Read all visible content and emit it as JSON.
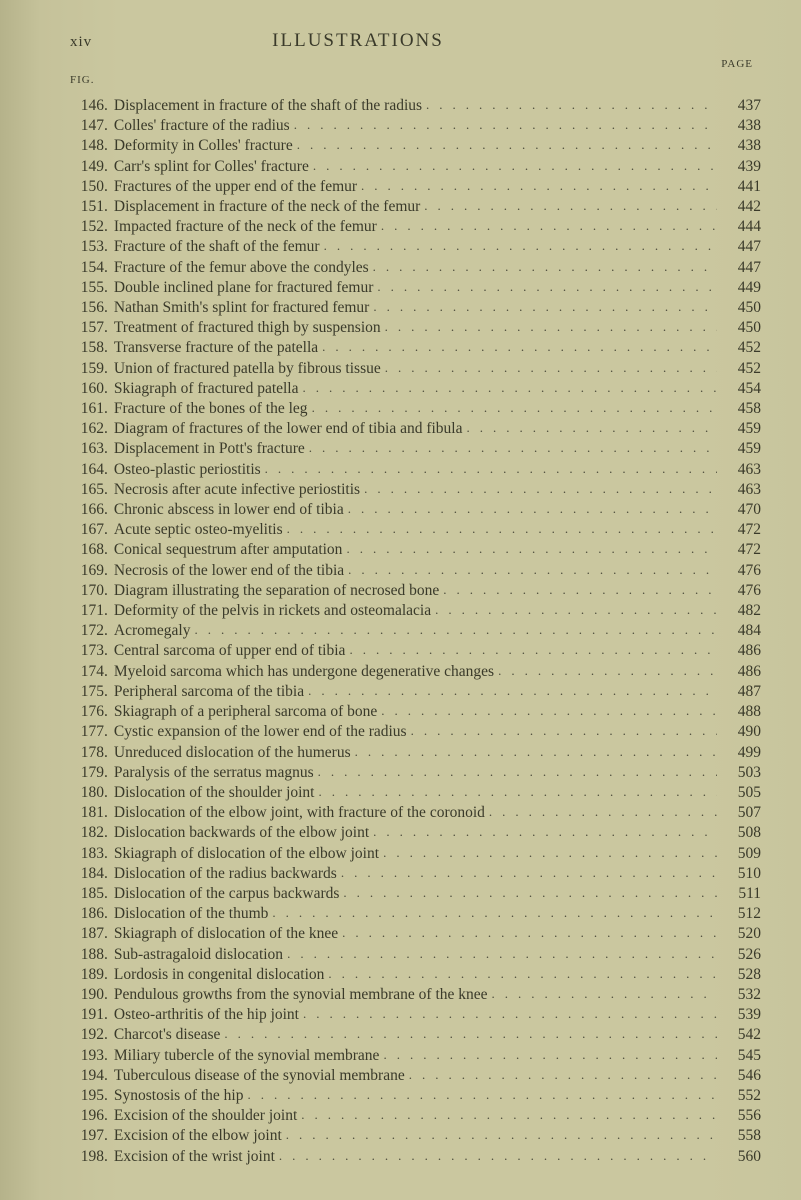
{
  "page_number_roman": "xiv",
  "title": "ILLUSTRATIONS",
  "page_label": "PAGE",
  "fig_label": "FIG.",
  "dot_fill": ".............................................................",
  "entries": [
    {
      "n": "146",
      "d": "Displacement in fracture of the shaft of the radius",
      "p": "437"
    },
    {
      "n": "147",
      "d": "Colles' fracture of the radius",
      "p": "438"
    },
    {
      "n": "148",
      "d": "Deformity in Colles' fracture",
      "p": "438"
    },
    {
      "n": "149",
      "d": "Carr's splint for Colles' fracture",
      "p": "439"
    },
    {
      "n": "150",
      "d": "Fractures of the upper end of the femur",
      "p": "441"
    },
    {
      "n": "151",
      "d": "Displacement in fracture of the neck of the femur",
      "p": "442"
    },
    {
      "n": "152",
      "d": "Impacted fracture of the neck of the femur",
      "p": "444"
    },
    {
      "n": "153",
      "d": "Fracture of the shaft of the femur",
      "p": "447"
    },
    {
      "n": "154",
      "d": "Fracture of the femur above the condyles",
      "p": "447"
    },
    {
      "n": "155",
      "d": "Double inclined plane for fractured femur",
      "p": "449"
    },
    {
      "n": "156",
      "d": "Nathan Smith's splint for fractured femur",
      "p": "450"
    },
    {
      "n": "157",
      "d": "Treatment of fractured thigh by suspension",
      "p": "450"
    },
    {
      "n": "158",
      "d": "Transverse fracture of the patella",
      "p": "452"
    },
    {
      "n": "159",
      "d": "Union of fractured patella by fibrous tissue",
      "p": "452"
    },
    {
      "n": "160",
      "d": "Skiagraph of fractured patella",
      "p": "454"
    },
    {
      "n": "161",
      "d": "Fracture of the bones of the leg",
      "p": "458"
    },
    {
      "n": "162",
      "d": "Diagram of fractures of the lower end of tibia and fibula",
      "p": "459"
    },
    {
      "n": "163",
      "d": "Displacement in Pott's fracture",
      "p": "459"
    },
    {
      "n": "164",
      "d": "Osteo-plastic periostitis",
      "p": "463"
    },
    {
      "n": "165",
      "d": "Necrosis after acute infective periostitis",
      "p": "463"
    },
    {
      "n": "166",
      "d": "Chronic abscess in lower end of tibia",
      "p": "470"
    },
    {
      "n": "167",
      "d": "Acute septic osteo-myelitis",
      "p": "472"
    },
    {
      "n": "168",
      "d": "Conical sequestrum after amputation",
      "p": "472"
    },
    {
      "n": "169",
      "d": "Necrosis of the lower end of the tibia",
      "p": "476"
    },
    {
      "n": "170",
      "d": "Diagram illustrating the separation of necrosed bone",
      "p": "476"
    },
    {
      "n": "171",
      "d": "Deformity of the pelvis in rickets and osteomalacia",
      "p": "482"
    },
    {
      "n": "172",
      "d": "Acromegaly",
      "p": "484"
    },
    {
      "n": "173",
      "d": "Central sarcoma of upper end of tibia",
      "p": "486"
    },
    {
      "n": "174",
      "d": "Myeloid sarcoma which has undergone degenerative changes",
      "p": "486"
    },
    {
      "n": "175",
      "d": "Peripheral sarcoma of the tibia",
      "p": "487"
    },
    {
      "n": "176",
      "d": "Skiagraph of a peripheral sarcoma of bone",
      "p": "488"
    },
    {
      "n": "177",
      "d": "Cystic expansion of the lower end of the radius",
      "p": "490"
    },
    {
      "n": "178",
      "d": "Unreduced dislocation of the humerus",
      "p": "499"
    },
    {
      "n": "179",
      "d": "Paralysis of the serratus magnus",
      "p": "503"
    },
    {
      "n": "180",
      "d": "Dislocation of the shoulder joint",
      "p": "505"
    },
    {
      "n": "181",
      "d": "Dislocation of the elbow joint, with fracture of the coronoid",
      "p": "507"
    },
    {
      "n": "182",
      "d": "Dislocation backwards of the elbow joint",
      "p": "508"
    },
    {
      "n": "183",
      "d": "Skiagraph of dislocation of the elbow joint",
      "p": "509"
    },
    {
      "n": "184",
      "d": "Dislocation of the radius backwards",
      "p": "510"
    },
    {
      "n": "185",
      "d": "Dislocation of the carpus backwards",
      "p": "511"
    },
    {
      "n": "186",
      "d": "Dislocation of the thumb",
      "p": "512"
    },
    {
      "n": "187",
      "d": "Skiagraph of dislocation of the knee",
      "p": "520"
    },
    {
      "n": "188",
      "d": "Sub-astragaloid dislocation",
      "p": "526"
    },
    {
      "n": "189",
      "d": "Lordosis in congenital dislocation",
      "p": "528"
    },
    {
      "n": "190",
      "d": "Pendulous growths from the synovial membrane of the knee",
      "p": "532"
    },
    {
      "n": "191",
      "d": "Osteo-arthritis of the hip joint",
      "p": "539"
    },
    {
      "n": "192",
      "d": "Charcot's disease",
      "p": "542"
    },
    {
      "n": "193",
      "d": "Miliary tubercle of the synovial membrane",
      "p": "545"
    },
    {
      "n": "194",
      "d": "Tuberculous disease of the synovial membrane",
      "p": "546"
    },
    {
      "n": "195",
      "d": "Synostosis of the hip",
      "p": "552"
    },
    {
      "n": "196",
      "d": "Excision of the shoulder joint",
      "p": "556"
    },
    {
      "n": "197",
      "d": "Excision of the elbow joint",
      "p": "558"
    },
    {
      "n": "198",
      "d": "Excision of the wrist joint",
      "p": "560"
    }
  ]
}
